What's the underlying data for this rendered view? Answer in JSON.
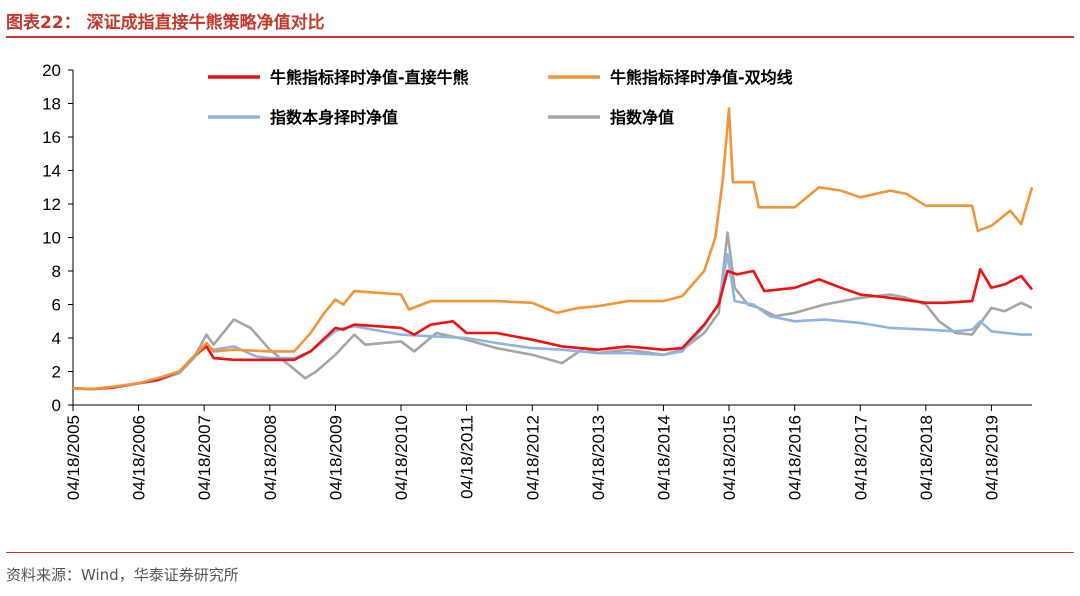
{
  "header": {
    "title": "图表22：  深证成指直接牛熊策略净值对比"
  },
  "footer": {
    "source": "资料来源：Wind，华泰证券研究所"
  },
  "chart_data": {
    "type": "line",
    "ylim": [
      0,
      20
    ],
    "yticks": [
      0,
      2,
      4,
      6,
      8,
      10,
      12,
      14,
      16,
      18,
      20
    ],
    "xlim": [
      "2005-04-18",
      "2019-11-30"
    ],
    "xticks": [
      "04/18/2005",
      "04/18/2006",
      "04/18/2007",
      "04/18/2008",
      "04/18/2009",
      "04/18/2010",
      "04/18/2011",
      "04/18/2012",
      "04/18/2013",
      "04/18/2014",
      "04/18/2015",
      "04/18/2016",
      "04/18/2017",
      "04/18/2018",
      "04/18/2019"
    ],
    "legend_position": "top",
    "series": [
      {
        "name": "牛熊指标择时净值-直接牛熊",
        "color": "#ee1111",
        "points": [
          [
            "2005-04-18",
            1.0
          ],
          [
            "2005-08-01",
            0.95
          ],
          [
            "2005-12-01",
            1.05
          ],
          [
            "2006-04-18",
            1.3
          ],
          [
            "2006-08-01",
            1.5
          ],
          [
            "2006-12-01",
            2.0
          ],
          [
            "2007-03-01",
            3.0
          ],
          [
            "2007-05-01",
            3.5
          ],
          [
            "2007-06-10",
            2.8
          ],
          [
            "2007-10-01",
            2.7
          ],
          [
            "2008-04-18",
            2.7
          ],
          [
            "2008-09-01",
            2.7
          ],
          [
            "2008-12-01",
            3.2
          ],
          [
            "2009-04-18",
            4.6
          ],
          [
            "2009-06-01",
            4.5
          ],
          [
            "2009-08-01",
            4.8
          ],
          [
            "2010-04-18",
            4.6
          ],
          [
            "2010-07-01",
            4.2
          ],
          [
            "2010-10-01",
            4.8
          ],
          [
            "2011-02-01",
            5.0
          ],
          [
            "2011-04-18",
            4.3
          ],
          [
            "2011-10-01",
            4.3
          ],
          [
            "2012-04-18",
            3.9
          ],
          [
            "2012-10-01",
            3.5
          ],
          [
            "2013-04-18",
            3.3
          ],
          [
            "2013-10-01",
            3.5
          ],
          [
            "2014-04-18",
            3.3
          ],
          [
            "2014-08-01",
            3.4
          ],
          [
            "2014-12-01",
            4.8
          ],
          [
            "2015-02-20",
            6.0
          ],
          [
            "2015-04-10",
            8.0
          ],
          [
            "2015-06-01",
            7.8
          ],
          [
            "2015-09-01",
            8.0
          ],
          [
            "2015-11-01",
            6.8
          ],
          [
            "2016-04-18",
            7.0
          ],
          [
            "2016-09-01",
            7.5
          ],
          [
            "2017-01-01",
            7.0
          ],
          [
            "2017-04-18",
            6.6
          ],
          [
            "2017-10-01",
            6.4
          ],
          [
            "2018-04-18",
            6.1
          ],
          [
            "2018-08-01",
            6.1
          ],
          [
            "2019-01-01",
            6.2
          ],
          [
            "2019-02-15",
            8.1
          ],
          [
            "2019-04-18",
            7.0
          ],
          [
            "2019-07-01",
            7.2
          ],
          [
            "2019-10-01",
            7.7
          ],
          [
            "2019-11-30",
            6.9
          ]
        ]
      },
      {
        "name": "牛熊指标择时净值-双均线",
        "color": "#f0953a",
        "points": [
          [
            "2005-04-18",
            1.0
          ],
          [
            "2005-08-01",
            0.95
          ],
          [
            "2005-12-01",
            1.1
          ],
          [
            "2006-04-18",
            1.3
          ],
          [
            "2006-08-01",
            1.6
          ],
          [
            "2006-12-01",
            2.0
          ],
          [
            "2007-03-01",
            3.0
          ],
          [
            "2007-05-01",
            3.7
          ],
          [
            "2007-06-10",
            3.2
          ],
          [
            "2007-10-01",
            3.3
          ],
          [
            "2008-04-18",
            3.2
          ],
          [
            "2008-09-01",
            3.2
          ],
          [
            "2008-12-01",
            4.3
          ],
          [
            "2009-02-15",
            5.5
          ],
          [
            "2009-04-18",
            6.3
          ],
          [
            "2009-06-01",
            6.0
          ],
          [
            "2009-08-01",
            6.8
          ],
          [
            "2010-04-18",
            6.6
          ],
          [
            "2010-06-01",
            5.7
          ],
          [
            "2010-10-01",
            6.2
          ],
          [
            "2011-04-18",
            6.2
          ],
          [
            "2011-10-01",
            6.2
          ],
          [
            "2012-04-18",
            6.1
          ],
          [
            "2012-09-01",
            5.5
          ],
          [
            "2013-01-01",
            5.8
          ],
          [
            "2013-04-18",
            5.9
          ],
          [
            "2013-10-01",
            6.2
          ],
          [
            "2014-04-18",
            6.2
          ],
          [
            "2014-08-01",
            6.5
          ],
          [
            "2014-12-01",
            8.0
          ],
          [
            "2015-02-01",
            10.0
          ],
          [
            "2015-03-15",
            13.5
          ],
          [
            "2015-04-18",
            17.7
          ],
          [
            "2015-05-10",
            13.3
          ],
          [
            "2015-09-01",
            13.3
          ],
          [
            "2015-10-01",
            11.8
          ],
          [
            "2016-04-18",
            11.8
          ],
          [
            "2016-09-01",
            13.0
          ],
          [
            "2017-01-01",
            12.8
          ],
          [
            "2017-04-18",
            12.4
          ],
          [
            "2017-10-01",
            12.8
          ],
          [
            "2018-01-01",
            12.6
          ],
          [
            "2018-04-18",
            11.9
          ],
          [
            "2018-10-01",
            11.9
          ],
          [
            "2019-01-01",
            11.9
          ],
          [
            "2019-02-01",
            10.4
          ],
          [
            "2019-04-18",
            10.7
          ],
          [
            "2019-08-01",
            11.6
          ],
          [
            "2019-10-01",
            10.8
          ],
          [
            "2019-11-30",
            13.0
          ]
        ]
      },
      {
        "name": "指数本身择时净值",
        "color": "#8fb4e3",
        "points": [
          [
            "2005-04-18",
            1.0
          ],
          [
            "2005-08-01",
            0.95
          ],
          [
            "2005-12-01",
            1.05
          ],
          [
            "2006-04-18",
            1.3
          ],
          [
            "2006-08-01",
            1.45
          ],
          [
            "2006-12-01",
            1.9
          ],
          [
            "2007-03-01",
            2.9
          ],
          [
            "2007-05-01",
            3.6
          ],
          [
            "2007-06-10",
            3.3
          ],
          [
            "2007-10-01",
            3.5
          ],
          [
            "2008-02-01",
            2.9
          ],
          [
            "2008-04-18",
            2.8
          ],
          [
            "2008-09-01",
            2.8
          ],
          [
            "2008-12-01",
            3.2
          ],
          [
            "2009-04-18",
            4.4
          ],
          [
            "2009-06-01",
            4.6
          ],
          [
            "2009-08-01",
            4.7
          ],
          [
            "2010-04-18",
            4.2
          ],
          [
            "2010-10-01",
            4.1
          ],
          [
            "2011-04-18",
            4.0
          ],
          [
            "2011-10-01",
            3.7
          ],
          [
            "2012-04-18",
            3.4
          ],
          [
            "2012-10-01",
            3.3
          ],
          [
            "2013-04-18",
            3.1
          ],
          [
            "2013-10-01",
            3.1
          ],
          [
            "2014-04-18",
            3.0
          ],
          [
            "2014-08-01",
            3.2
          ],
          [
            "2014-12-01",
            4.7
          ],
          [
            "2015-02-20",
            6.1
          ],
          [
            "2015-04-10",
            9.0
          ],
          [
            "2015-05-20",
            6.2
          ],
          [
            "2015-09-01",
            6.0
          ],
          [
            "2015-12-01",
            5.3
          ],
          [
            "2016-04-18",
            5.0
          ],
          [
            "2016-10-01",
            5.1
          ],
          [
            "2017-04-18",
            4.9
          ],
          [
            "2017-10-01",
            4.6
          ],
          [
            "2018-04-18",
            4.5
          ],
          [
            "2018-10-01",
            4.4
          ],
          [
            "2019-01-01",
            4.5
          ],
          [
            "2019-02-15",
            5.0
          ],
          [
            "2019-04-18",
            4.4
          ],
          [
            "2019-10-01",
            4.2
          ],
          [
            "2019-11-30",
            4.2
          ]
        ]
      },
      {
        "name": "指数净值",
        "color": "#a6a6a6",
        "points": [
          [
            "2005-04-18",
            1.0
          ],
          [
            "2005-08-01",
            0.95
          ],
          [
            "2005-12-01",
            1.05
          ],
          [
            "2006-04-18",
            1.3
          ],
          [
            "2006-08-01",
            1.45
          ],
          [
            "2006-12-01",
            2.0
          ],
          [
            "2007-03-01",
            3.0
          ],
          [
            "2007-05-01",
            4.2
          ],
          [
            "2007-06-10",
            3.6
          ],
          [
            "2007-10-01",
            5.1
          ],
          [
            "2008-01-01",
            4.6
          ],
          [
            "2008-04-18",
            3.3
          ],
          [
            "2008-08-01",
            2.4
          ],
          [
            "2008-11-01",
            1.6
          ],
          [
            "2009-01-01",
            2.0
          ],
          [
            "2009-04-18",
            3.0
          ],
          [
            "2009-08-01",
            4.2
          ],
          [
            "2009-10-01",
            3.6
          ],
          [
            "2010-04-18",
            3.8
          ],
          [
            "2010-07-01",
            3.2
          ],
          [
            "2010-11-01",
            4.3
          ],
          [
            "2011-04-18",
            3.9
          ],
          [
            "2011-10-01",
            3.4
          ],
          [
            "2012-04-18",
            3.0
          ],
          [
            "2012-10-01",
            2.5
          ],
          [
            "2013-02-01",
            3.4
          ],
          [
            "2013-04-18",
            3.1
          ],
          [
            "2013-10-01",
            3.3
          ],
          [
            "2014-04-18",
            3.0
          ],
          [
            "2014-08-01",
            3.3
          ],
          [
            "2014-12-01",
            4.3
          ],
          [
            "2015-02-20",
            5.5
          ],
          [
            "2015-04-10",
            10.3
          ],
          [
            "2015-05-20",
            7.0
          ],
          [
            "2015-08-01",
            6.0
          ],
          [
            "2015-10-01",
            5.8
          ],
          [
            "2016-01-01",
            5.3
          ],
          [
            "2016-04-18",
            5.5
          ],
          [
            "2016-10-01",
            6.0
          ],
          [
            "2017-04-18",
            6.4
          ],
          [
            "2017-10-01",
            6.6
          ],
          [
            "2018-01-01",
            6.4
          ],
          [
            "2018-04-18",
            6.0
          ],
          [
            "2018-07-01",
            5.0
          ],
          [
            "2018-10-01",
            4.3
          ],
          [
            "2019-01-01",
            4.2
          ],
          [
            "2019-04-18",
            5.8
          ],
          [
            "2019-07-01",
            5.6
          ],
          [
            "2019-10-01",
            6.1
          ],
          [
            "2019-11-30",
            5.8
          ]
        ]
      }
    ]
  }
}
